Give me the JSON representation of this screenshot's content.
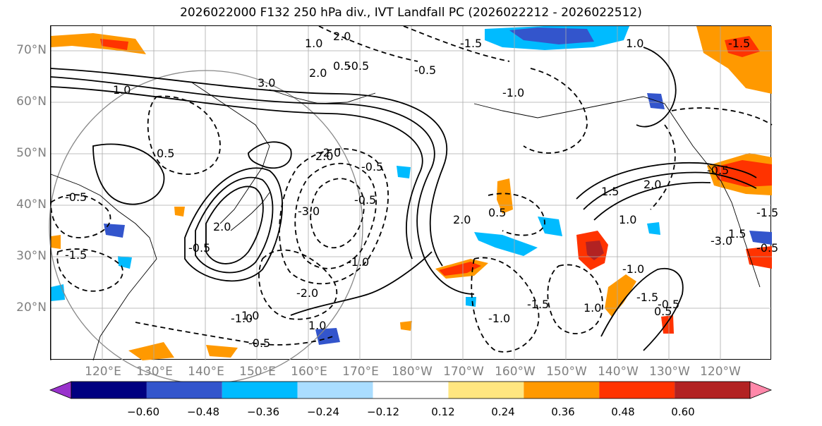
{
  "title": "2026022000 F132 250 hPa div., IVT Landfall PC (2026022212 - 2026022512)",
  "map": {
    "type": "meteorological-map",
    "lat_labels": [
      "70°N",
      "60°N",
      "50°N",
      "40°N",
      "30°N",
      "20°N"
    ],
    "lon_labels": [
      "120°E",
      "130°E",
      "140°E",
      "150°E",
      "160°E",
      "170°E",
      "180°W",
      "170°W",
      "160°W",
      "150°W",
      "140°W",
      "130°W",
      "120°W"
    ],
    "contour_labels": [
      "2.0",
      "1.0",
      "-1.5",
      "0.5",
      "-0.5",
      "-0.5",
      "3.0",
      "2.0",
      "1.0",
      "1.0",
      "-1.5",
      "-1.0",
      "-0.5",
      "2.0",
      "0.5",
      "-0.5",
      "2.0",
      "-2.0",
      "-0.5",
      "-3.0",
      "-1.0",
      "-2.0",
      "-0.5",
      "2.0",
      "0.5",
      "-1.5",
      "1.0",
      "-1.0",
      "-1.0",
      "-1.5",
      "1.0",
      "-0.5",
      "1.5",
      "2.0",
      "1.0",
      "-0.5",
      "-3.0",
      "1.5",
      "-1.0",
      "-1.5",
      "0.5",
      "1.0",
      "-0.5",
      "-1.5",
      "-0.5"
    ]
  },
  "colorbar": {
    "colors": [
      "#9933cc",
      "#000080",
      "#3355cc",
      "#00bbff",
      "#aaddff",
      "#ffffff",
      "#ffe680",
      "#ff9900",
      "#ff3300",
      "#b22222",
      "#ff88aa"
    ],
    "ticks": [
      "−0.60",
      "−0.48",
      "−0.36",
      "−0.24",
      "−0.12",
      "0.12",
      "0.24",
      "0.36",
      "0.48",
      "0.60"
    ]
  }
}
